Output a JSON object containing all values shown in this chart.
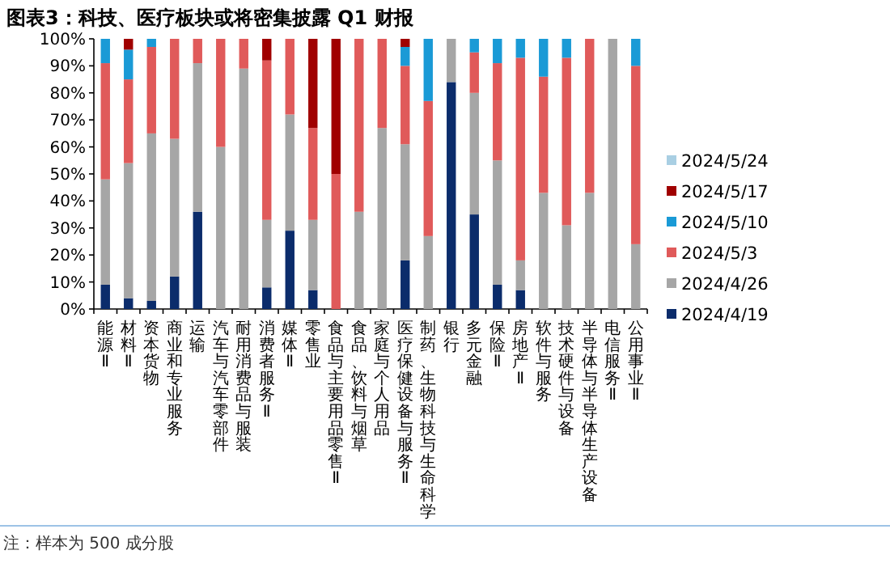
{
  "chart_data": {
    "type": "bar",
    "stacked": true,
    "title": "图表3：科技、医疗板块或将密集披露 Q1 财报",
    "categories": [
      "能源Ⅱ",
      "材料Ⅱ",
      "资本货物",
      "商业和专业服务",
      "运输",
      "汽车与汽车零部件",
      "耐用消费品与服装",
      "消费者服务Ⅱ",
      "媒体Ⅱ",
      "零售业",
      "食品与主要用品零售Ⅱ",
      "食品、饮料与烟草",
      "家庭与个人用品",
      "医疗保健设备与服务Ⅱ",
      "制药、生物科技与生命科学",
      "银行",
      "多元金融",
      "保险Ⅱ",
      "房地产Ⅱ",
      "软件与服务",
      "技术硬件与设备",
      "半导体与半导体生产设备",
      "电信服务Ⅱ",
      "公用事业Ⅱ"
    ],
    "series": [
      {
        "name": "2024/4/19",
        "color": "#0b2c6b",
        "values": [
          9,
          4,
          3,
          12,
          36,
          0,
          0,
          8,
          29,
          7,
          0,
          0,
          0,
          18,
          0,
          84,
          35,
          9,
          7,
          0,
          0,
          0,
          0,
          0
        ]
      },
      {
        "name": "2024/4/26",
        "color": "#a6a6a6",
        "values": [
          39,
          50,
          62,
          51,
          55,
          60,
          89,
          25,
          43,
          26,
          0,
          36,
          67,
          43,
          27,
          16,
          45,
          46,
          11,
          43,
          31,
          43,
          100,
          24
        ]
      },
      {
        "name": "2024/5/3",
        "color": "#e05a5a",
        "values": [
          43,
          31,
          32,
          37,
          9,
          40,
          11,
          59,
          28,
          34,
          50,
          64,
          33,
          29,
          50,
          0,
          15,
          36,
          75,
          43,
          62,
          57,
          0,
          66
        ]
      },
      {
        "name": "2024/5/10",
        "color": "#1a9ad6",
        "values": [
          9,
          11,
          3,
          0,
          0,
          0,
          0,
          0,
          0,
          0,
          0,
          0,
          0,
          7,
          23,
          0,
          5,
          9,
          7,
          14,
          7,
          0,
          0,
          10
        ]
      },
      {
        "name": "2024/5/17",
        "color": "#a00000",
        "values": [
          0,
          4,
          0,
          0,
          0,
          0,
          0,
          8,
          0,
          33,
          50,
          0,
          0,
          3,
          0,
          0,
          0,
          0,
          0,
          0,
          0,
          0,
          0,
          0
        ]
      },
      {
        "name": "2024/5/24",
        "color": "#a9cfe3",
        "values": [
          null,
          null,
          null,
          null,
          null,
          null,
          null,
          null,
          null,
          null,
          null,
          null,
          null,
          null,
          null,
          null,
          null,
          null,
          null,
          null,
          null,
          null,
          null,
          null
        ]
      }
    ],
    "ylim": [
      0,
      100
    ],
    "yticks": [
      {
        "value": 0,
        "label": "0%"
      },
      {
        "value": 10,
        "label": "10%"
      },
      {
        "value": 20,
        "label": "20%"
      },
      {
        "value": 30,
        "label": "30%"
      },
      {
        "value": 40,
        "label": "40%"
      },
      {
        "value": 50,
        "label": "50%"
      },
      {
        "value": 60,
        "label": "60%"
      },
      {
        "value": 70,
        "label": "70%"
      },
      {
        "value": 80,
        "label": "80%"
      },
      {
        "value": 90,
        "label": "90%"
      },
      {
        "value": 100,
        "label": "100%"
      }
    ],
    "legend": "right",
    "annotations": [
      "注：样本为 500 成分股"
    ]
  }
}
